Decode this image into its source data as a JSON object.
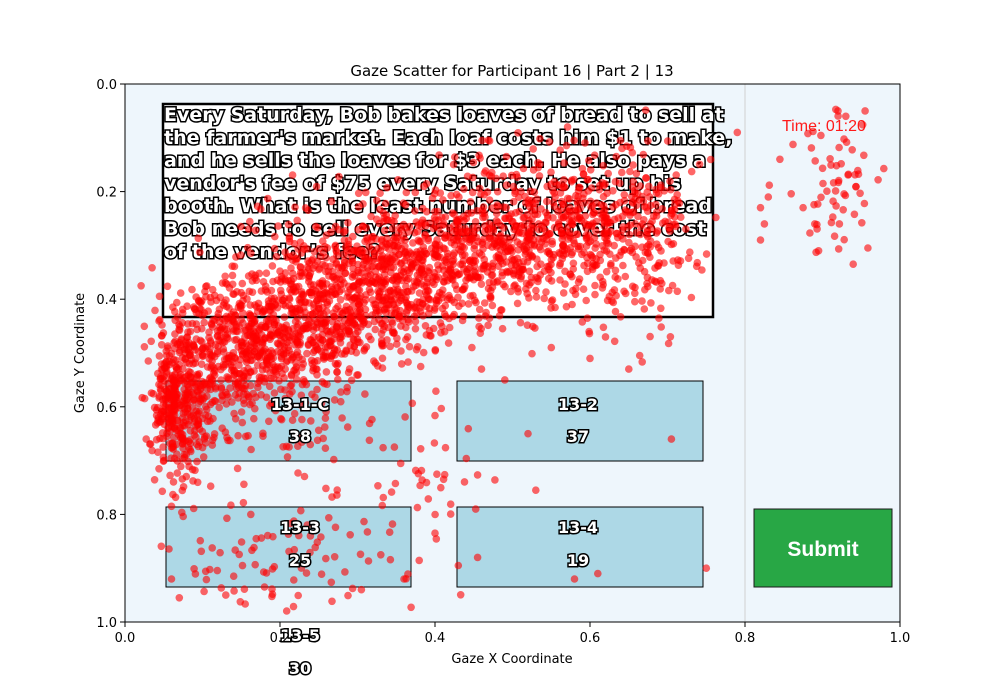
{
  "chart_data": {
    "type": "scatter",
    "title": "Gaze Scatter for Participant 16 | Part 2 | 13",
    "xlabel": "Gaze X Coordinate",
    "ylabel": "Gaze Y Coordinate",
    "xlim": [
      0.0,
      1.0
    ],
    "ylim": [
      1.0,
      0.0
    ],
    "y_inverted": true,
    "x_ticks": [
      "0.0",
      "0.2",
      "0.4",
      "0.6",
      "0.8",
      "1.0"
    ],
    "y_ticks": [
      "0.0",
      "0.2",
      "0.4",
      "0.6",
      "0.8",
      "1.0"
    ],
    "grid": false,
    "point_color": "#ff0000",
    "clusters": [
      {
        "cx": 0.07,
        "cy": 0.6,
        "sx": 0.02,
        "sy": 0.07,
        "n": 380
      },
      {
        "cx": 0.16,
        "cy": 0.5,
        "sx": 0.06,
        "sy": 0.06,
        "n": 520
      },
      {
        "cx": 0.29,
        "cy": 0.38,
        "sx": 0.07,
        "sy": 0.07,
        "n": 600
      },
      {
        "cx": 0.42,
        "cy": 0.32,
        "sx": 0.06,
        "sy": 0.06,
        "n": 450
      },
      {
        "cx": 0.55,
        "cy": 0.27,
        "sx": 0.06,
        "sy": 0.07,
        "n": 420
      },
      {
        "cx": 0.66,
        "cy": 0.27,
        "sx": 0.04,
        "sy": 0.09,
        "n": 240
      },
      {
        "cx": 0.23,
        "cy": 0.43,
        "sx": 0.1,
        "sy": 0.05,
        "n": 300
      },
      {
        "cx": 0.21,
        "cy": 0.88,
        "sx": 0.09,
        "sy": 0.05,
        "n": 90
      },
      {
        "cx": 0.22,
        "cy": 0.66,
        "sx": 0.08,
        "sy": 0.05,
        "n": 50
      },
      {
        "cx": 0.4,
        "cy": 0.75,
        "sx": 0.04,
        "sy": 0.05,
        "n": 30
      },
      {
        "cx": 0.92,
        "cy": 0.18,
        "sx": 0.025,
        "sy": 0.08,
        "n": 60
      }
    ],
    "points": [
      [
        0.79,
        0.09
      ],
      [
        0.845,
        0.14
      ],
      [
        0.83,
        0.21
      ],
      [
        0.82,
        0.23
      ],
      [
        0.825,
        0.26
      ],
      [
        0.82,
        0.29
      ],
      [
        0.875,
        0.23
      ],
      [
        0.89,
        0.26
      ],
      [
        0.895,
        0.31
      ],
      [
        0.92,
        0.05
      ],
      [
        0.93,
        0.06
      ],
      [
        0.955,
        0.05
      ],
      [
        0.52,
        0.65
      ],
      [
        0.75,
        0.9
      ],
      [
        0.705,
        0.66
      ],
      [
        0.61,
        0.91
      ],
      [
        0.58,
        0.92
      ],
      [
        0.455,
        0.88
      ],
      [
        0.43,
        0.895
      ],
      [
        0.4,
        0.835
      ],
      [
        0.305,
        0.94
      ],
      [
        0.55,
        0.49
      ],
      [
        0.6,
        0.51
      ],
      [
        0.65,
        0.53
      ],
      [
        0.49,
        0.55
      ],
      [
        0.46,
        0.53
      ],
      [
        0.62,
        0.47
      ],
      [
        0.53,
        0.755
      ],
      [
        0.07,
        0.955
      ],
      [
        0.06,
        0.92
      ],
      [
        0.06,
        0.785
      ],
      [
        0.13,
        0.95
      ],
      [
        0.18,
        0.935
      ],
      [
        0.36,
        0.92
      ],
      [
        0.33,
        0.875
      ]
    ]
  },
  "scene": {
    "question": [
      "Every Saturday, Bob bakes loaves of bread to sell at",
      "the farmer's market. Each loaf costs him $1 to make,",
      "and he sells the loaves for $3 each. He also pays a",
      "vendor's fee of $75 every Saturday to set up his",
      "booth. What is the least number of loaves of bread",
      "Bob needs to sell every Saturday to cover the cost",
      "of the vendor’s fee?"
    ],
    "timer": "Time: 01:20",
    "submit_label": "Submit",
    "options": [
      {
        "id": "13-1-C",
        "value": "38"
      },
      {
        "id": "13-2",
        "value": "37"
      },
      {
        "id": "13-3",
        "value": "25"
      },
      {
        "id": "13-4",
        "value": "19"
      },
      {
        "id": "13-5",
        "value": "30"
      }
    ],
    "colors": {
      "background": "#eef6fc",
      "option_fill": "#add8e6",
      "submit_fill": "#28a745",
      "divider": "#d0d0d0"
    }
  }
}
